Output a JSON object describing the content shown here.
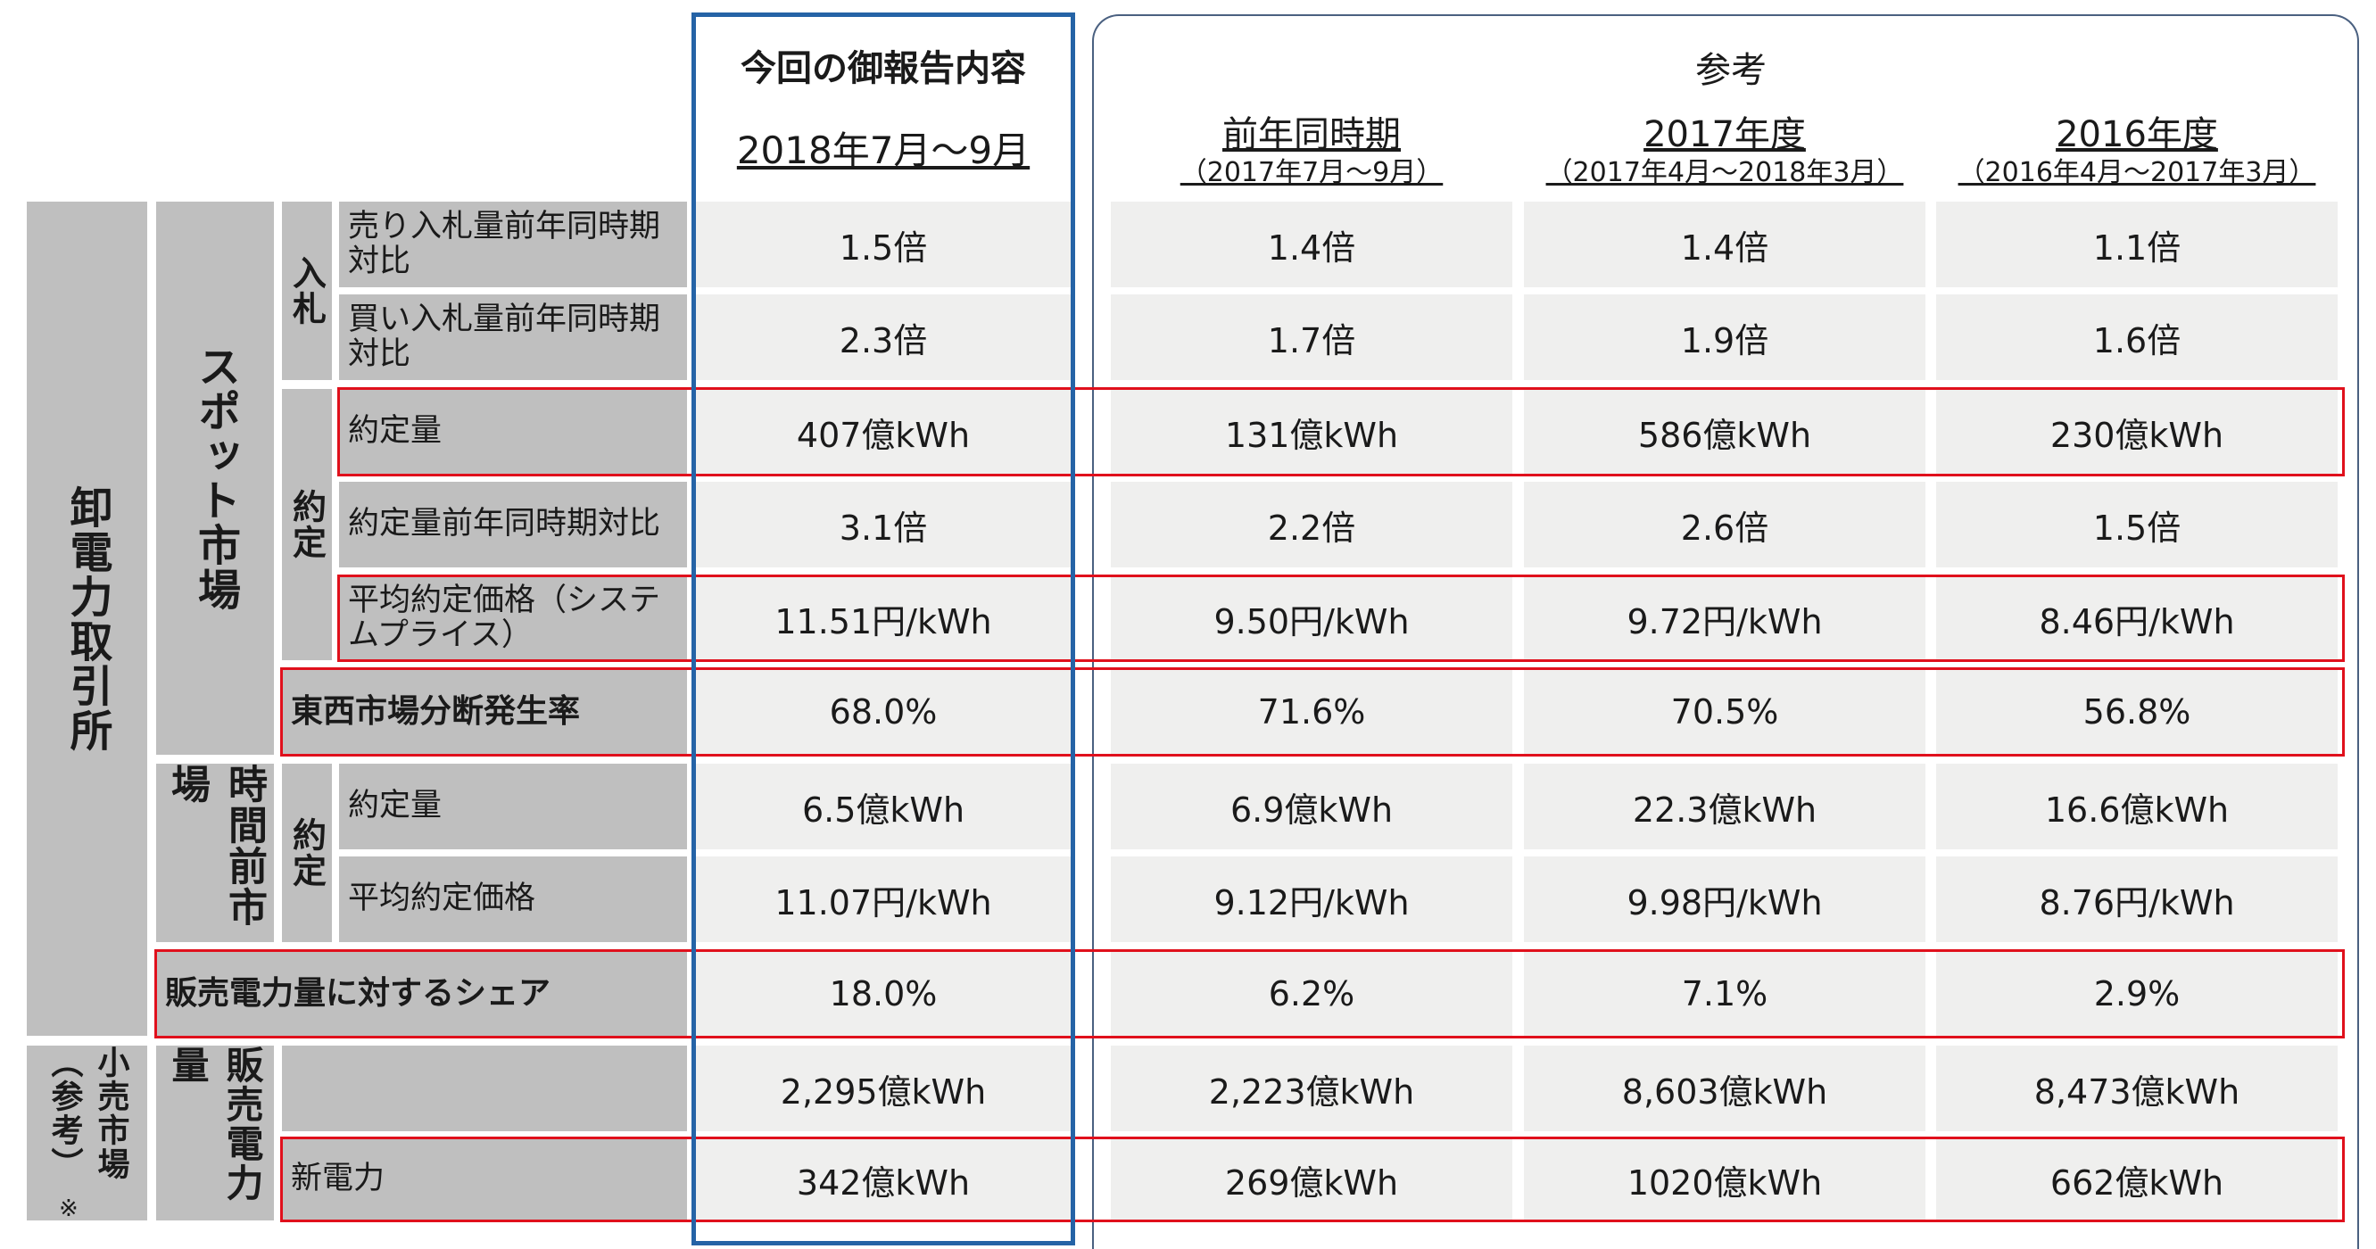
{
  "header": {
    "current_title": "今回の御報告内容",
    "current_period": "2018年7月～9月",
    "reference_title": "参考",
    "columns": [
      {
        "title": "前年同時期",
        "sub": "（2017年7月～9月）"
      },
      {
        "title": "2017年度",
        "sub": "（2017年4月～2018年3月）"
      },
      {
        "title": "2016年度",
        "sub": "（2016年4月～2017年3月）"
      }
    ]
  },
  "groups": {
    "jepx": "卸電力取引所",
    "spot": "スポット市場",
    "bid": "入札",
    "contract": "約定",
    "intraday": "時間前市場",
    "intraday_contract": "約定",
    "retail": "小売市場（参考）",
    "retail_note": "※",
    "sales": "販売電力量"
  },
  "rows": [
    {
      "label": "売り入札量前年同時期対比",
      "values": [
        "1.5倍",
        "1.4倍",
        "1.4倍",
        "1.1倍"
      ]
    },
    {
      "label": "買い入札量前年同時期対比",
      "values": [
        "2.3倍",
        "1.7倍",
        "1.9倍",
        "1.6倍"
      ]
    },
    {
      "label": "約定量",
      "values": [
        "407億kWh",
        "131億kWh",
        "586億kWh",
        "230億kWh"
      ]
    },
    {
      "label": "約定量前年同時期対比",
      "values": [
        "3.1倍",
        "2.2倍",
        "2.6倍",
        "1.5倍"
      ]
    },
    {
      "label": "平均約定価格（システムプライス）",
      "values": [
        "11.51円/kWh",
        "9.50円/kWh",
        "9.72円/kWh",
        "8.46円/kWh"
      ]
    },
    {
      "label": "東西市場分断発生率",
      "values": [
        "68.0%",
        "71.6%",
        "70.5%",
        "56.8%"
      ]
    },
    {
      "label": "約定量",
      "values": [
        "6.5億kWh",
        "6.9億kWh",
        "22.3億kWh",
        "16.6億kWh"
      ]
    },
    {
      "label": "平均約定価格",
      "values": [
        "11.07円/kWh",
        "9.12円/kWh",
        "9.98円/kWh",
        "8.76円/kWh"
      ]
    },
    {
      "label": "販売電力量に対するシェア",
      "values": [
        "18.0%",
        "6.2%",
        "7.1%",
        "2.9%"
      ]
    },
    {
      "label": "",
      "values": [
        "2,295億kWh",
        "2,223億kWh",
        "8,603億kWh",
        "8,473億kWh"
      ]
    },
    {
      "label": "新電力",
      "values": [
        "342億kWh",
        "269億kWh",
        "1020億kWh",
        "662億kWh"
      ]
    }
  ],
  "colors": {
    "highlight_red": "#e0101c",
    "current_blue": "#2563a6",
    "label_grey": "#bfbfbf",
    "value_bg": "#efefee"
  }
}
